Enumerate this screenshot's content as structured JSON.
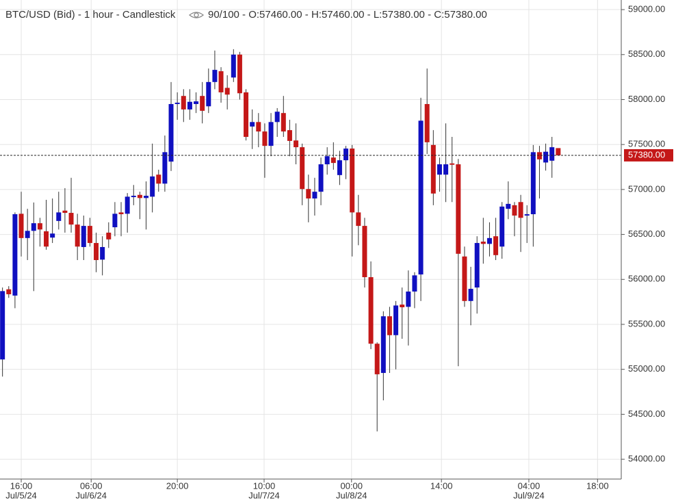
{
  "chart_data": {
    "type": "candlestick",
    "title": "BTC/USD (Bid) - 1 hour - Candlestick",
    "info": "90/100 - O:57460.00 - H:57460.00 - L:57380.00 - C:57380.00",
    "up_color": "#1010c0",
    "down_color": "#c41818",
    "grid": true,
    "ylim": [
      53780,
      59107
    ],
    "xlim": [
      -0.4,
      99.1
    ],
    "yticks": [
      {
        "value": 54000,
        "label": "54000.00"
      },
      {
        "value": 54500,
        "label": "54500.00"
      },
      {
        "value": 55000,
        "label": "55000.00"
      },
      {
        "value": 55500,
        "label": "55500.00"
      },
      {
        "value": 56000,
        "label": "56000.00"
      },
      {
        "value": 56500,
        "label": "56500.00"
      },
      {
        "value": 57000,
        "label": "57000.00"
      },
      {
        "value": 57500,
        "label": "57500.00"
      },
      {
        "value": 58000,
        "label": "58000.00"
      },
      {
        "value": 58500,
        "label": "58500.00"
      },
      {
        "value": 59000,
        "label": "59000.00"
      }
    ],
    "xticks": [
      {
        "value": 3.0,
        "label": "16:00",
        "date": "Jul/5/24"
      },
      {
        "value": 14.2,
        "label": "06:00",
        "date": "Jul/6/24"
      },
      {
        "value": 28.0,
        "label": "20:00"
      },
      {
        "value": 41.9,
        "label": "10:00",
        "date": "Jul/7/24"
      },
      {
        "value": 55.9,
        "label": "00:00",
        "date": "Jul/8/24"
      },
      {
        "value": 70.3,
        "label": "14:00"
      },
      {
        "value": 84.3,
        "label": "04:00",
        "date": "Jul/9/24"
      },
      {
        "value": 95.3,
        "label": "18:00"
      }
    ],
    "last_price": {
      "value": 57380,
      "label": "57380.00"
    },
    "open": [
      55110,
      55890,
      55820,
      56730,
      56460,
      56540,
      56625,
      56535,
      56465,
      56650,
      56765,
      56740,
      56610,
      56360,
      56595,
      56405,
      56220,
      56520,
      56580,
      56745,
      56730,
      56915,
      56940,
      56905,
      56920,
      57165,
      57065,
      57310,
      57950,
      58040,
      57890,
      57950,
      58040,
      57925,
      58195,
      58315,
      58130,
      58245,
      58500,
      58080,
      57700,
      57750,
      57645,
      57485,
      57750,
      57850,
      57660,
      57545,
      57470,
      57005,
      56900,
      56975,
      57280,
      57355,
      57160,
      57325,
      57455,
      56745,
      56595,
      56025,
      55285,
      54960,
      55590,
      55380,
      55720,
      55695,
      55865,
      56055,
      57950,
      57495,
      57165,
      57165,
      57290,
      57280,
      56255,
      55760,
      55910,
      56420,
      56395,
      56480,
      56365,
      56785,
      56825,
      56860,
      56710,
      56725,
      57415,
      57300,
      57320,
      57460
    ],
    "high": [
      55910,
      55925,
      56745,
      56975,
      56785,
      56855,
      56685,
      56885,
      56900,
      56975,
      57015,
      57130,
      56730,
      56710,
      56685,
      56520,
      56480,
      56635,
      56860,
      56860,
      56960,
      57050,
      56975,
      57090,
      57510,
      57220,
      57600,
      58195,
      58080,
      58115,
      58115,
      58080,
      58195,
      58345,
      58545,
      58360,
      58270,
      58560,
      58530,
      58115,
      57890,
      57850,
      57735,
      57850,
      57905,
      58040,
      57775,
      57735,
      57510,
      57165,
      57130,
      57355,
      57470,
      57525,
      57430,
      57485,
      57495,
      56940,
      56685,
      56200,
      55300,
      55645,
      55695,
      55760,
      55910,
      56100,
      56080,
      58020,
      58345,
      57660,
      57355,
      57735,
      57585,
      57340,
      56365,
      56140,
      56480,
      56685,
      56635,
      56685,
      56860,
      57090,
      56860,
      56940,
      56825,
      57495,
      57485,
      57510,
      57585,
      57460
    ],
    "low": [
      54920,
      55795,
      55680,
      56255,
      56215,
      55870,
      56365,
      56330,
      56405,
      56555,
      56520,
      56520,
      56215,
      56215,
      56365,
      56080,
      56045,
      56350,
      56480,
      56480,
      56520,
      56825,
      56670,
      56555,
      56745,
      56975,
      56975,
      57205,
      57775,
      57750,
      57775,
      57850,
      57735,
      57850,
      58115,
      57965,
      57890,
      58195,
      58000,
      57545,
      57450,
      57470,
      57130,
      57370,
      57585,
      57585,
      57370,
      57280,
      56825,
      56635,
      56710,
      56825,
      57165,
      57220,
      57050,
      57115,
      56255,
      56380,
      55910,
      55225,
      54310,
      54655,
      54960,
      55000,
      55340,
      55265,
      55680,
      55760,
      57395,
      56825,
      56975,
      56860,
      56860,
      55035,
      55695,
      55490,
      55620,
      56175,
      56255,
      56215,
      56230,
      56670,
      56480,
      56305,
      56405,
      56365,
      56900,
      57210,
      57130,
      57380
    ],
    "close": [
      55870,
      55835,
      56725,
      56460,
      56540,
      56625,
      56555,
      56365,
      56510,
      56745,
      56740,
      56610,
      56365,
      56595,
      56405,
      56215,
      56360,
      56445,
      56730,
      56725,
      56920,
      56930,
      56905,
      56930,
      57145,
      57065,
      57415,
      57950,
      57965,
      57890,
      57975,
      57980,
      57875,
      58195,
      58330,
      58080,
      58055,
      58500,
      58070,
      57585,
      57750,
      57645,
      57485,
      57750,
      57865,
      57645,
      57540,
      57470,
      57005,
      56900,
      56975,
      57280,
      57370,
      57295,
      57325,
      57455,
      56745,
      56595,
      56025,
      55285,
      54945,
      55590,
      55380,
      55710,
      55690,
      55865,
      56045,
      57765,
      57525,
      56955,
      57280,
      57280,
      57275,
      56285,
      55760,
      55895,
      56405,
      56395,
      56460,
      56270,
      56810,
      56840,
      56710,
      56685,
      56725,
      57415,
      57335,
      57420,
      57470,
      57380
    ]
  }
}
